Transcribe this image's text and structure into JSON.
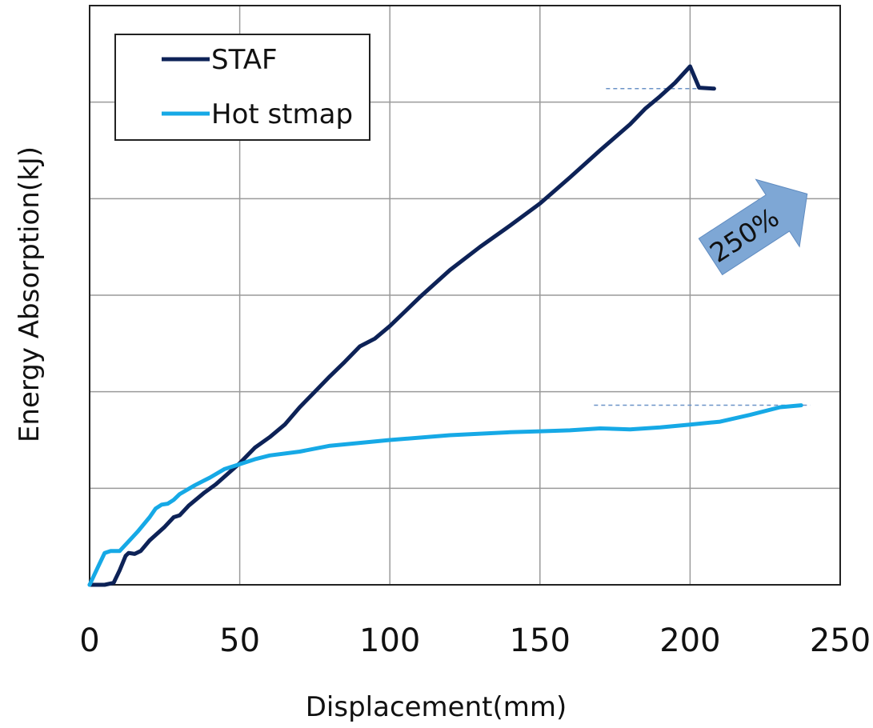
{
  "chart_data": {
    "type": "line",
    "title": "",
    "xlabel": "Displacement(mm)",
    "ylabel": "Energy Absorption(kJ)",
    "xlim": [
      0,
      250
    ],
    "ylim": [
      0,
      6
    ],
    "x_ticks": [
      0,
      50,
      100,
      150,
      200,
      250
    ],
    "y_tick_labels_shown": false,
    "grid": true,
    "legend_position": "top-left",
    "series": [
      {
        "name": "STAF",
        "color": "#0d2257",
        "points": [
          [
            0,
            0
          ],
          [
            2,
            0
          ],
          [
            5,
            0
          ],
          [
            8,
            0.02
          ],
          [
            10,
            0.15
          ],
          [
            12,
            0.3
          ],
          [
            13,
            0.33
          ],
          [
            15,
            0.32
          ],
          [
            17,
            0.35
          ],
          [
            20,
            0.46
          ],
          [
            25,
            0.6
          ],
          [
            28,
            0.7
          ],
          [
            30,
            0.72
          ],
          [
            33,
            0.82
          ],
          [
            38,
            0.95
          ],
          [
            42,
            1.04
          ],
          [
            46,
            1.15
          ],
          [
            50,
            1.26
          ],
          [
            55,
            1.42
          ],
          [
            60,
            1.53
          ],
          [
            65,
            1.66
          ],
          [
            70,
            1.84
          ],
          [
            75,
            2.0
          ],
          [
            80,
            2.16
          ],
          [
            85,
            2.31
          ],
          [
            90,
            2.47
          ],
          [
            95,
            2.55
          ],
          [
            100,
            2.68
          ],
          [
            105,
            2.83
          ],
          [
            110,
            2.98
          ],
          [
            120,
            3.26
          ],
          [
            130,
            3.5
          ],
          [
            140,
            3.72
          ],
          [
            150,
            3.95
          ],
          [
            160,
            4.22
          ],
          [
            170,
            4.5
          ],
          [
            180,
            4.77
          ],
          [
            185,
            4.93
          ],
          [
            190,
            5.06
          ],
          [
            195,
            5.2
          ],
          [
            200,
            5.37
          ],
          [
            203,
            5.15
          ],
          [
            208,
            5.14
          ]
        ]
      },
      {
        "name": "Hot stmap",
        "color": "#16a9e6",
        "points": [
          [
            0,
            0
          ],
          [
            3,
            0.2
          ],
          [
            5,
            0.33
          ],
          [
            7,
            0.35
          ],
          [
            10,
            0.35
          ],
          [
            13,
            0.45
          ],
          [
            16,
            0.55
          ],
          [
            20,
            0.7
          ],
          [
            22,
            0.79
          ],
          [
            24,
            0.83
          ],
          [
            26,
            0.84
          ],
          [
            28,
            0.88
          ],
          [
            30,
            0.94
          ],
          [
            35,
            1.03
          ],
          [
            40,
            1.11
          ],
          [
            45,
            1.2
          ],
          [
            50,
            1.25
          ],
          [
            55,
            1.3
          ],
          [
            60,
            1.34
          ],
          [
            70,
            1.38
          ],
          [
            80,
            1.44
          ],
          [
            90,
            1.47
          ],
          [
            100,
            1.5
          ],
          [
            120,
            1.55
          ],
          [
            140,
            1.58
          ],
          [
            150,
            1.59
          ],
          [
            160,
            1.6
          ],
          [
            170,
            1.62
          ],
          [
            180,
            1.61
          ],
          [
            190,
            1.63
          ],
          [
            200,
            1.66
          ],
          [
            210,
            1.69
          ],
          [
            220,
            1.76
          ],
          [
            230,
            1.84
          ],
          [
            237,
            1.86
          ]
        ]
      }
    ],
    "annotations": [
      {
        "type": "arrow",
        "text": "250%",
        "color": "#7ea7d5"
      },
      {
        "type": "reference-line",
        "series": "STAF",
        "y": 5.14,
        "x_range": [
          172,
          208
        ],
        "color": "#6b93c7"
      },
      {
        "type": "reference-line",
        "series": "Hot stmap",
        "y": 1.86,
        "x_range": [
          168,
          240
        ],
        "color": "#6b93c7"
      }
    ]
  }
}
